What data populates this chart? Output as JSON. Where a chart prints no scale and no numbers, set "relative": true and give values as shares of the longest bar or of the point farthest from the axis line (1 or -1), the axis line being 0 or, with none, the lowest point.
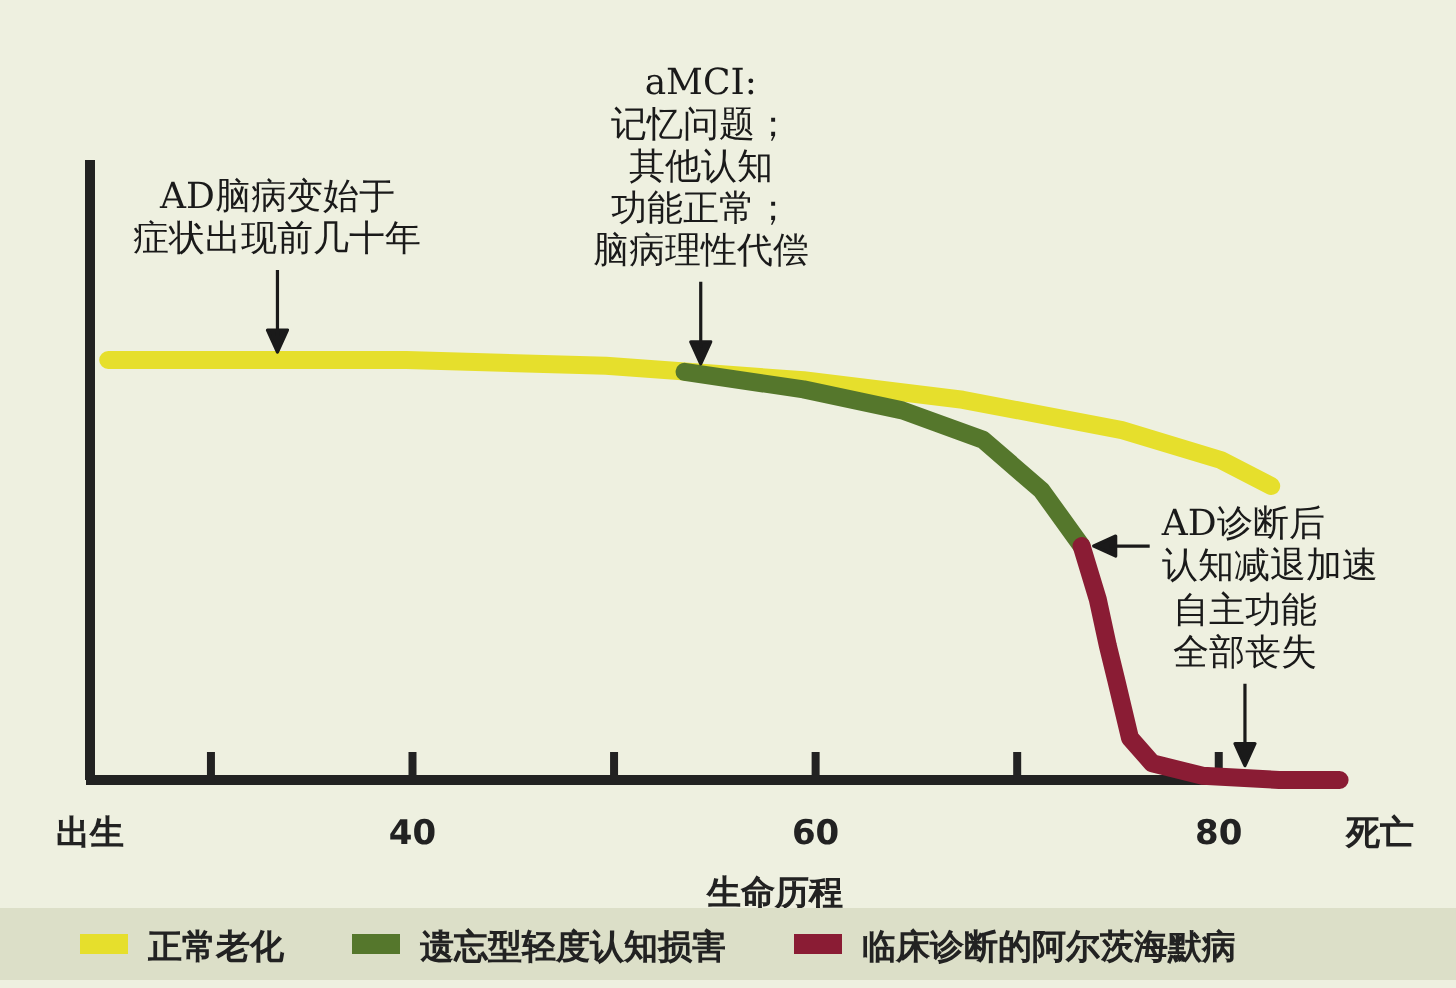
{
  "chart_data": {
    "type": "line",
    "relative": true,
    "xlabel": "生命历程",
    "xlim": [
      24,
      88
    ],
    "xticks": [
      {
        "value": 24,
        "label": "出生"
      },
      {
        "value": 30,
        "label": null
      },
      40,
      {
        "value": 50,
        "label": null
      },
      60,
      {
        "value": 70,
        "label": null
      },
      80,
      {
        "value": 88,
        "label": "死亡"
      }
    ],
    "legend": "bottom",
    "grid": false,
    "marker": "none",
    "line_style": "solid",
    "series": [
      {
        "name": "正常老化",
        "color": "#e6df2c",
        "x": [
          24.9,
          39.7,
          49.6,
          59.4,
          67.3,
          75.2,
          80.1,
          82.6
        ],
        "values": [
          1.0,
          1.0,
          0.986,
          0.952,
          0.905,
          0.833,
          0.762,
          0.7
        ]
      },
      {
        "name": "遗忘型轻度认知损害",
        "color": "#55772c",
        "x": [
          53.5,
          59.4,
          64.3,
          68.3,
          71.2,
          73.2
        ],
        "values": [
          0.972,
          0.93,
          0.88,
          0.81,
          0.69,
          0.557
        ]
      },
      {
        "name": "临床诊断的阿尔茨海默病",
        "color": "#8a1c34",
        "x": [
          73.2,
          74.0,
          74.5,
          74.9,
          75.6,
          76.7,
          79.2,
          83,
          86
        ],
        "values": [
          0.557,
          0.43,
          0.32,
          0.24,
          0.1,
          0.04,
          0.01,
          0.0,
          0.0
        ]
      }
    ],
    "annotations": [
      {
        "text": "AD脑病变始于症状出现前几十年",
        "x": 33.3,
        "y": 1.0
      },
      {
        "text": "aMCI:记忆问题；其他认知功能正常；脑病理性代偿",
        "x": 54.3,
        "y": 0.972
      },
      {
        "text": "AD诊断后认知减退加速",
        "x": 73.2,
        "y": 0.557
      },
      {
        "text": "自主功能全部丧失",
        "x": 81.3,
        "y": 0.015
      }
    ]
  }
}
